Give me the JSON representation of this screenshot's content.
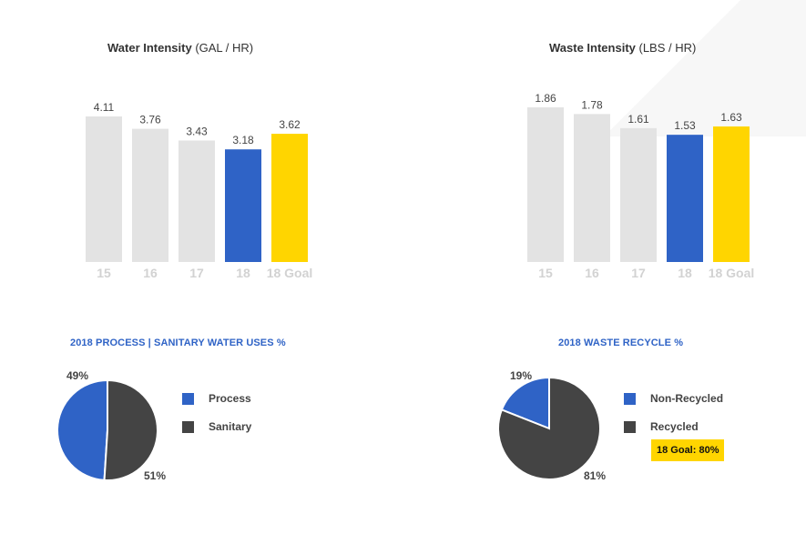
{
  "colors": {
    "gray_bar": "#e3e3e3",
    "blue": "#2f63c6",
    "yellow": "#ffd500",
    "dark": "#444444",
    "tick": "#d2d2d2"
  },
  "water": {
    "title_bold": "Water Intensity",
    "title_unit": " (GAL / HR)"
  },
  "waste": {
    "title_bold": "Waste Intensity",
    "title_unit": " (LBS / HR)"
  },
  "process_pie": {
    "title": "2018 PROCESS | SANITARY WATER USES %",
    "label_process": "49%",
    "label_sanitary": "51%",
    "legend": [
      {
        "label": "Process",
        "color": "#2f63c6"
      },
      {
        "label": "Sanitary",
        "color": "#444444"
      }
    ]
  },
  "recycle_pie": {
    "title": "2018 WASTE RECYCLE %",
    "label_nonrecycled": "19%",
    "label_recycled": "81%",
    "legend": [
      {
        "label": "Non-Recycled",
        "color": "#2f63c6"
      },
      {
        "label": "Recycled",
        "color": "#444444"
      }
    ],
    "goal_badge": "18 Goal: 80%"
  },
  "chart_data": [
    {
      "type": "bar",
      "title": "Water Intensity (GAL / HR)",
      "categories": [
        "15",
        "16",
        "17",
        "18",
        "18 Goal"
      ],
      "values": [
        4.11,
        3.76,
        3.43,
        3.18,
        3.62
      ],
      "value_labels": [
        "4.11",
        "3.76",
        "3.43",
        "3.18",
        "3.62"
      ],
      "bar_colors": [
        "#e3e3e3",
        "#e3e3e3",
        "#e3e3e3",
        "#2f63c6",
        "#ffd500"
      ],
      "ylim": [
        0,
        4.5
      ],
      "grid": false
    },
    {
      "type": "bar",
      "title": "Waste Intensity (LBS / HR)",
      "categories": [
        "15",
        "16",
        "17",
        "18",
        "18 Goal"
      ],
      "values": [
        1.86,
        1.78,
        1.61,
        1.53,
        1.63
      ],
      "value_labels": [
        "1.86",
        "1.78",
        "1.61",
        "1.53",
        "1.63"
      ],
      "bar_colors": [
        "#e3e3e3",
        "#e3e3e3",
        "#e3e3e3",
        "#2f63c6",
        "#ffd500"
      ],
      "ylim": [
        0,
        1.9
      ],
      "grid": false
    },
    {
      "type": "pie",
      "title": "2018 PROCESS | SANITARY WATER USES %",
      "labels": [
        "Process",
        "Sanitary"
      ],
      "values": [
        49,
        51
      ],
      "colors": [
        "#2f63c6",
        "#444444"
      ],
      "legend": "right"
    },
    {
      "type": "pie",
      "title": "2018 WASTE RECYCLE %",
      "labels": [
        "Non-Recycled",
        "Recycled"
      ],
      "values": [
        19,
        81
      ],
      "colors": [
        "#2f63c6",
        "#444444"
      ],
      "legend": "right"
    }
  ]
}
